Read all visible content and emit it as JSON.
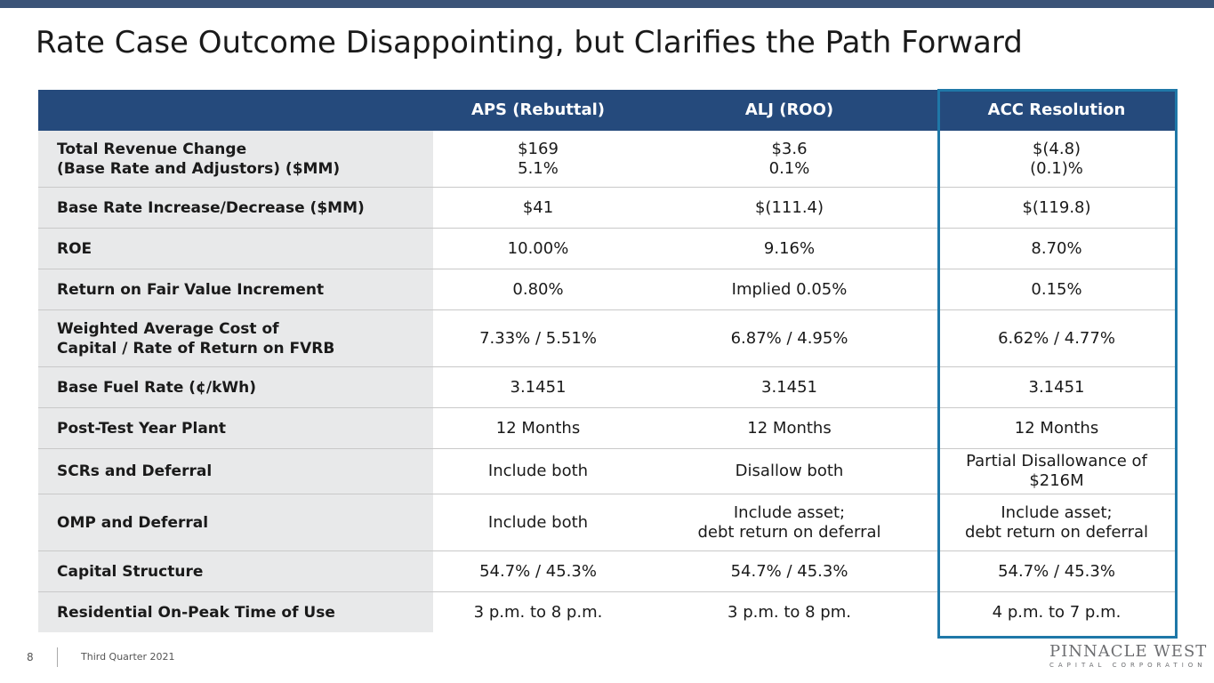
{
  "title": "Rate Case Outcome Disappointing, but Clarifies the Path Forward",
  "table": {
    "headers": [
      "",
      "APS (Rebuttal)",
      "ALJ (ROO)",
      "ACC Resolution"
    ],
    "rows": [
      {
        "label": "Total Revenue Change\n(Base Rate and Adjustors) ($MM)",
        "values": [
          "$169\n5.1%",
          "$3.6\n0.1%",
          "$(4.8)\n(0.1)%"
        ]
      },
      {
        "label": "Base Rate Increase/Decrease ($MM)",
        "values": [
          "$41",
          "$(111.4)",
          "$(119.8)"
        ]
      },
      {
        "label": "ROE",
        "values": [
          "10.00%",
          "9.16%",
          "8.70%"
        ]
      },
      {
        "label": "Return on Fair Value Increment",
        "values": [
          "0.80%",
          "Implied 0.05%",
          "0.15%"
        ]
      },
      {
        "label": "Weighted Average Cost of\nCapital / Rate of Return on FVRB",
        "values": [
          "7.33% / 5.51%",
          "6.87% / 4.95%",
          "6.62% / 4.77%"
        ]
      },
      {
        "label": "Base Fuel Rate (¢/kWh)",
        "values": [
          "3.1451",
          "3.1451",
          "3.1451"
        ]
      },
      {
        "label": "Post-Test Year Plant",
        "values": [
          "12 Months",
          "12 Months",
          "12 Months"
        ]
      },
      {
        "label": "SCRs and Deferral",
        "values": [
          "Include both",
          "Disallow both",
          "Partial Disallowance of\n$216M"
        ]
      },
      {
        "label": "OMP and Deferral",
        "values": [
          "Include both",
          "Include asset;\ndebt return on deferral",
          "Include asset;\ndebt return on deferral"
        ]
      },
      {
        "label": "Capital Structure",
        "values": [
          "54.7% / 45.3%",
          "54.7% / 45.3%",
          "54.7% / 45.3%"
        ]
      },
      {
        "label": "Residential On-Peak Time of Use",
        "values": [
          "3 p.m. to 8 p.m.",
          "3 p.m. to 8 pm.",
          "4 p.m. to 7 p.m."
        ]
      }
    ]
  },
  "footer": {
    "page_number": "8",
    "period": "Third Quarter 2021",
    "logo_main": "PINNACLE WEST",
    "logo_sub": "CAPITAL CORPORATION"
  }
}
